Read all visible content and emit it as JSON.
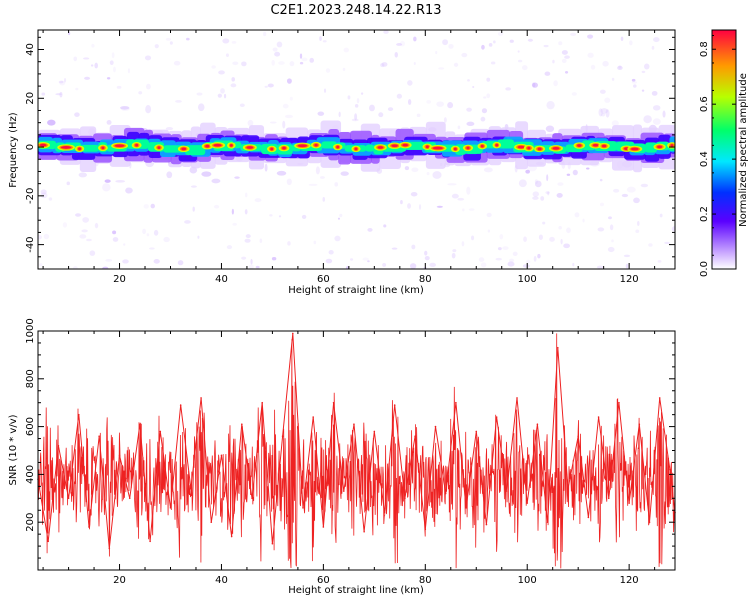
{
  "figure": {
    "title": "C2E1.2023.248.14.22.R13"
  },
  "chart_data": [
    {
      "type": "heatmap",
      "xlabel": "Height of straight line (km)",
      "ylabel": "Frequency (Hz)",
      "xlim": [
        4,
        129
      ],
      "ylim": [
        -50,
        48
      ],
      "xticks": [
        20,
        40,
        60,
        80,
        100,
        120
      ],
      "yticks": [
        -40,
        -20,
        0,
        20,
        40
      ],
      "ridge_frequency_hz": 0,
      "colorbar": {
        "label": "Normalized spectral amplitude",
        "range": [
          0,
          0.87
        ],
        "ticks": [
          0.0,
          0.2,
          0.4,
          0.6,
          0.8
        ]
      },
      "grid": false
    },
    {
      "type": "line",
      "xlabel": "Height of straight line (km)",
      "ylabel": "SNR (10 * v/v)",
      "xlim": [
        4,
        129
      ],
      "ylim": [
        0,
        1000
      ],
      "xticks": [
        20,
        40,
        60,
        80,
        100,
        120
      ],
      "yticks": [
        200,
        400,
        600,
        800,
        1000
      ],
      "color": "#ee2222",
      "grid": false,
      "x": [
        4,
        6,
        8,
        10,
        12,
        14,
        16,
        18,
        20,
        22,
        24,
        26,
        28,
        30,
        32,
        34,
        36,
        38,
        40,
        42,
        44,
        46,
        48,
        50,
        52,
        54,
        56,
        58,
        60,
        62,
        64,
        66,
        68,
        70,
        72,
        74,
        76,
        78,
        80,
        82,
        84,
        86,
        88,
        90,
        92,
        94,
        96,
        98,
        100,
        102,
        104,
        106,
        108,
        110,
        112,
        114,
        116,
        118,
        120,
        122,
        124,
        126,
        128,
        129
      ],
      "y": [
        380,
        120,
        520,
        300,
        650,
        180,
        560,
        90,
        480,
        300,
        610,
        120,
        580,
        260,
        690,
        340,
        720,
        200,
        480,
        140,
        610,
        300,
        700,
        110,
        560,
        990,
        260,
        640,
        180,
        700,
        330,
        610,
        160,
        580,
        240,
        690,
        300,
        560,
        170,
        600,
        320,
        700,
        260,
        580,
        190,
        640,
        330,
        720,
        280,
        610,
        200,
        930,
        340,
        560,
        220,
        640,
        300,
        700,
        280,
        610,
        200,
        720,
        420,
        240
      ]
    }
  ]
}
